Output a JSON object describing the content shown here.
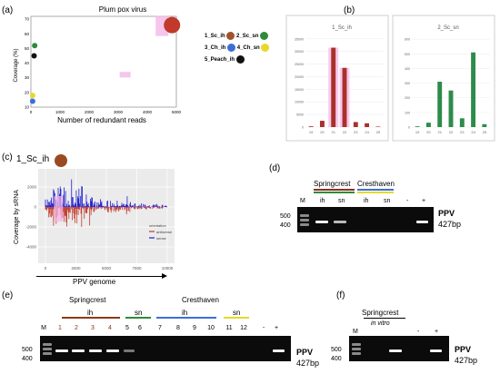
{
  "panels": {
    "a": "(a)",
    "b": "(b)",
    "c": "(c)",
    "d": "(d)",
    "e": "(e)",
    "f": "(f)"
  },
  "chart_data": [
    {
      "type": "scatter",
      "title": "Plum pox virus",
      "xlabel": "Number of redundant reads",
      "ylabel": "Coverage (%)",
      "xlim": [
        0,
        5000
      ],
      "ylim": [
        10,
        72
      ],
      "xticks": [
        "0",
        "1000",
        "2000",
        "3000",
        "4000",
        "5000"
      ],
      "yticks": [
        "10",
        "20",
        "30",
        "40",
        "50",
        "60",
        "70"
      ],
      "points": [
        {
          "name": "1_Sc_ih",
          "x": 4850,
          "y": 66,
          "color": "#c0392b"
        },
        {
          "name": "2_Sc_sn",
          "x": 130,
          "y": 52,
          "color": "#2e8b3a"
        },
        {
          "name": "3_Ch_ih",
          "x": 60,
          "y": 14,
          "color": "#3b6fd8"
        },
        {
          "name": "4_Ch_sn",
          "x": 60,
          "y": 18,
          "color": "#e8d82a"
        },
        {
          "name": "5_Peach_ih",
          "x": 110,
          "y": 45,
          "color": "#111111"
        }
      ],
      "legend": [
        "1_Sc_ih",
        "2_Sc_sn",
        "3_Ch_ih",
        "4_Ch_sn",
        "5_Peach_ih"
      ]
    },
    {
      "type": "bar",
      "title": "1_Sc_ih",
      "categories": [
        "19",
        "20",
        "21",
        "22",
        "23",
        "24",
        "25"
      ],
      "values": [
        300,
        2500,
        31500,
        23500,
        2000,
        1500,
        200
      ],
      "yticks": [
        "0",
        "5000",
        "10000",
        "15000",
        "20000",
        "25000",
        "30000",
        "35000"
      ],
      "ylim": [
        0,
        36000
      ],
      "color": "#a8322b"
    },
    {
      "type": "bar",
      "title": "2_Sc_sn",
      "categories": [
        "19",
        "20",
        "21",
        "22",
        "23",
        "24",
        "25"
      ],
      "values": [
        5,
        30,
        310,
        250,
        60,
        510,
        20
      ],
      "yticks": [
        "0",
        "100",
        "200",
        "300",
        "400",
        "500",
        "600"
      ],
      "ylim": [
        0,
        620
      ],
      "color": "#2e8b4a"
    },
    {
      "type": "bar",
      "title": "1_Sc_ih",
      "xlabel": "PPV genome",
      "ylabel": "Coverage by sRNA",
      "xticks": [
        "0",
        "2500",
        "5000",
        "7500",
        "10000"
      ],
      "yticks": [
        "2000",
        "0",
        "-2000",
        "-4000"
      ],
      "legend_title": "orientation",
      "legend": [
        "antisense",
        "sense"
      ],
      "colors": {
        "sense": "#1f1fd0",
        "antisense": "#c0392b"
      }
    }
  ],
  "gel_d": {
    "groups": [
      "Springcrest",
      "Cresthaven"
    ],
    "lanes": [
      "M",
      "ih",
      "sn",
      "ih",
      "sn",
      "-",
      "+"
    ],
    "markers": [
      "500",
      "400"
    ],
    "target": "PPV",
    "size": "427bp"
  },
  "gel_e": {
    "groups": [
      "Springcrest",
      "Cresthaven"
    ],
    "subgroups": [
      "ih",
      "sn",
      "ih",
      "sn"
    ],
    "lanes": [
      "M",
      "1",
      "2",
      "3",
      "4",
      "5",
      "6",
      "7",
      "8",
      "9",
      "10",
      "11",
      "12",
      "-",
      "+"
    ],
    "markers": [
      "500",
      "400"
    ],
    "target": "PPV",
    "size": "427bp"
  },
  "gel_f": {
    "group": "Springcrest",
    "sub": "in vitro",
    "lanes": [
      "M",
      "-",
      "+"
    ],
    "markers": [
      "500",
      "400"
    ],
    "target": "PPV",
    "size": "427bp"
  }
}
